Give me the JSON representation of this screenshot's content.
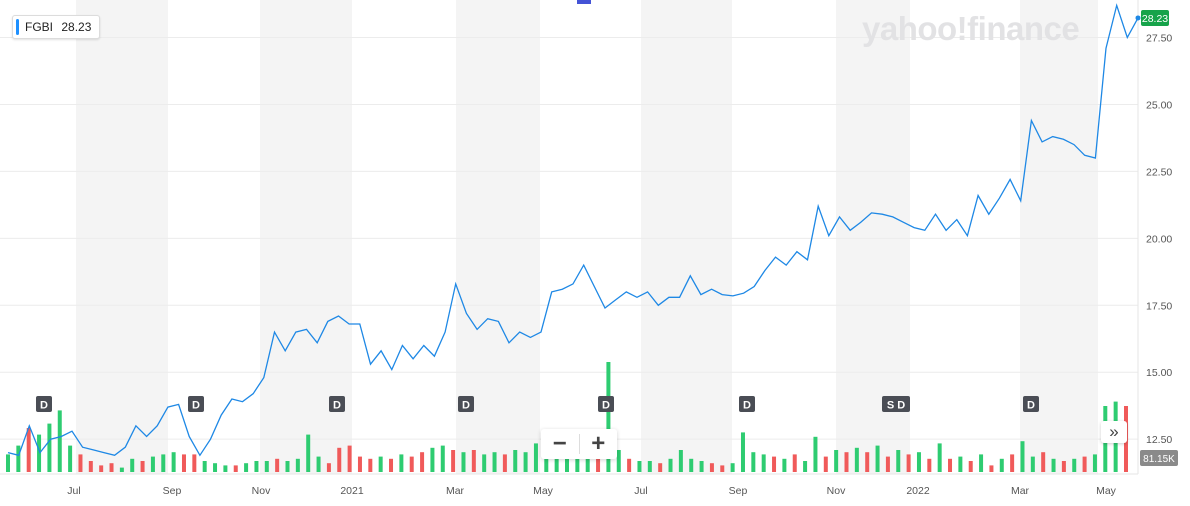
{
  "header": {
    "ticker": "FGBI",
    "price": "28.23"
  },
  "logo_text": "yahoo!finance",
  "zoom": {
    "minus_label": "−",
    "plus_label": "+"
  },
  "nav": {
    "fast_forward_label": "»"
  },
  "colors": {
    "line": "#1e88e5",
    "vol_up": "#2ecc71",
    "vol_down": "#f05a5a",
    "band": "#f4f4f4",
    "badge_up": "#16a34a",
    "marker": "#4a4d55",
    "axis_text": "#555555"
  },
  "chart_data": {
    "type": "line",
    "title": "",
    "xlabel": "",
    "ylabel": "",
    "ylim": [
      11.2,
      28.9
    ],
    "y_ticks": [
      "12.50",
      "15.00",
      "17.50",
      "20.00",
      "22.50",
      "25.00",
      "27.50"
    ],
    "y_tick_values": [
      12.5,
      15.0,
      17.5,
      20.0,
      22.5,
      25.0,
      27.5
    ],
    "x_ticks": [
      "Jul",
      "Sep",
      "Nov",
      "2021",
      "Mar",
      "May",
      "Jul",
      "Sep",
      "Nov",
      "2022",
      "Mar",
      "May"
    ],
    "last_price_label": "28.23",
    "volume_label": "81.15K",
    "grid": true,
    "series": [
      {
        "values": [
          12.0,
          11.9,
          13.0,
          12.0,
          12.5,
          12.6,
          12.8,
          12.2,
          12.1,
          12.0,
          11.9,
          12.2,
          13.0,
          12.6,
          13.0,
          13.7,
          13.8,
          12.6,
          11.9,
          12.5,
          13.4,
          14.0,
          13.9,
          14.2,
          14.8,
          16.5,
          15.8,
          16.5,
          16.6,
          16.1,
          16.9,
          17.1,
          16.8,
          16.8,
          15.3,
          15.8,
          15.1,
          16.0,
          15.5,
          16.0,
          15.6,
          16.5,
          18.3,
          17.2,
          16.6,
          17.0,
          16.9,
          16.1,
          16.5,
          16.3,
          16.5,
          18.0,
          18.1,
          18.3,
          19.0,
          18.2,
          17.4,
          17.7,
          18.0,
          17.8,
          18.0,
          17.5,
          17.8,
          17.8,
          18.6,
          17.9,
          18.1,
          17.9,
          17.85,
          17.95,
          18.2,
          18.8,
          19.3,
          19.0,
          19.5,
          19.2,
          21.2,
          20.1,
          20.8,
          20.3,
          20.6,
          20.95,
          20.9,
          20.8,
          20.6,
          20.4,
          20.3,
          20.9,
          20.3,
          20.7,
          20.1,
          21.6,
          20.9,
          21.5,
          22.2,
          21.4,
          24.4,
          23.6,
          23.8,
          23.7,
          23.5,
          23.1,
          23.0,
          27.1,
          28.7,
          27.5,
          28.23
        ]
      }
    ],
    "volume": [
      {
        "v": 8,
        "up": true
      },
      {
        "v": 12,
        "up": true
      },
      {
        "v": 20,
        "up": false
      },
      {
        "v": 17,
        "up": true
      },
      {
        "v": 22,
        "up": true
      },
      {
        "v": 28,
        "up": true
      },
      {
        "v": 12,
        "up": true
      },
      {
        "v": 8,
        "up": false
      },
      {
        "v": 5,
        "up": false
      },
      {
        "v": 3,
        "up": false
      },
      {
        "v": 4,
        "up": false
      },
      {
        "v": 2,
        "up": true
      },
      {
        "v": 6,
        "up": true
      },
      {
        "v": 5,
        "up": false
      },
      {
        "v": 7,
        "up": true
      },
      {
        "v": 8,
        "up": true
      },
      {
        "v": 9,
        "up": true
      },
      {
        "v": 8,
        "up": false
      },
      {
        "v": 8,
        "up": false
      },
      {
        "v": 5,
        "up": true
      },
      {
        "v": 4,
        "up": true
      },
      {
        "v": 3,
        "up": true
      },
      {
        "v": 3,
        "up": false
      },
      {
        "v": 4,
        "up": true
      },
      {
        "v": 5,
        "up": true
      },
      {
        "v": 5,
        "up": true
      },
      {
        "v": 6,
        "up": false
      },
      {
        "v": 5,
        "up": true
      },
      {
        "v": 6,
        "up": true
      },
      {
        "v": 17,
        "up": true
      },
      {
        "v": 7,
        "up": true
      },
      {
        "v": 4,
        "up": false
      },
      {
        "v": 11,
        "up": false
      },
      {
        "v": 12,
        "up": false
      },
      {
        "v": 7,
        "up": false
      },
      {
        "v": 6,
        "up": false
      },
      {
        "v": 7,
        "up": true
      },
      {
        "v": 6,
        "up": false
      },
      {
        "v": 8,
        "up": true
      },
      {
        "v": 7,
        "up": false
      },
      {
        "v": 9,
        "up": false
      },
      {
        "v": 11,
        "up": true
      },
      {
        "v": 12,
        "up": true
      },
      {
        "v": 10,
        "up": false
      },
      {
        "v": 9,
        "up": true
      },
      {
        "v": 10,
        "up": false
      },
      {
        "v": 8,
        "up": true
      },
      {
        "v": 9,
        "up": true
      },
      {
        "v": 8,
        "up": false
      },
      {
        "v": 10,
        "up": true
      },
      {
        "v": 9,
        "up": true
      },
      {
        "v": 13,
        "up": true
      },
      {
        "v": 16,
        "up": true
      },
      {
        "v": 15,
        "up": true
      },
      {
        "v": 12,
        "up": true
      },
      {
        "v": 8,
        "up": true
      },
      {
        "v": 10,
        "up": true
      },
      {
        "v": 14,
        "up": false
      },
      {
        "v": 50,
        "up": true
      },
      {
        "v": 10,
        "up": true
      },
      {
        "v": 6,
        "up": false
      },
      {
        "v": 5,
        "up": true
      },
      {
        "v": 5,
        "up": true
      },
      {
        "v": 4,
        "up": false
      },
      {
        "v": 6,
        "up": true
      },
      {
        "v": 10,
        "up": true
      },
      {
        "v": 6,
        "up": true
      },
      {
        "v": 5,
        "up": true
      },
      {
        "v": 4,
        "up": false
      },
      {
        "v": 3,
        "up": false
      },
      {
        "v": 4,
        "up": true
      },
      {
        "v": 18,
        "up": true
      },
      {
        "v": 9,
        "up": true
      },
      {
        "v": 8,
        "up": true
      },
      {
        "v": 7,
        "up": false
      },
      {
        "v": 6,
        "up": true
      },
      {
        "v": 8,
        "up": false
      },
      {
        "v": 5,
        "up": true
      },
      {
        "v": 16,
        "up": true
      },
      {
        "v": 7,
        "up": false
      },
      {
        "v": 10,
        "up": true
      },
      {
        "v": 9,
        "up": false
      },
      {
        "v": 11,
        "up": true
      },
      {
        "v": 9,
        "up": false
      },
      {
        "v": 12,
        "up": true
      },
      {
        "v": 7,
        "up": false
      },
      {
        "v": 10,
        "up": true
      },
      {
        "v": 8,
        "up": false
      },
      {
        "v": 9,
        "up": true
      },
      {
        "v": 6,
        "up": false
      },
      {
        "v": 13,
        "up": true
      },
      {
        "v": 6,
        "up": false
      },
      {
        "v": 7,
        "up": true
      },
      {
        "v": 5,
        "up": false
      },
      {
        "v": 8,
        "up": true
      },
      {
        "v": 3,
        "up": false
      },
      {
        "v": 6,
        "up": true
      },
      {
        "v": 8,
        "up": false
      },
      {
        "v": 14,
        "up": true
      },
      {
        "v": 7,
        "up": true
      },
      {
        "v": 9,
        "up": false
      },
      {
        "v": 6,
        "up": true
      },
      {
        "v": 5,
        "up": false
      },
      {
        "v": 6,
        "up": true
      },
      {
        "v": 7,
        "up": false
      },
      {
        "v": 8,
        "up": true
      },
      {
        "v": 30,
        "up": true
      },
      {
        "v": 32,
        "up": true
      },
      {
        "v": 30,
        "up": false
      }
    ],
    "dividend_markers": [
      "D",
      "D",
      "D",
      "D",
      "D",
      "D",
      "S D",
      "D"
    ]
  }
}
